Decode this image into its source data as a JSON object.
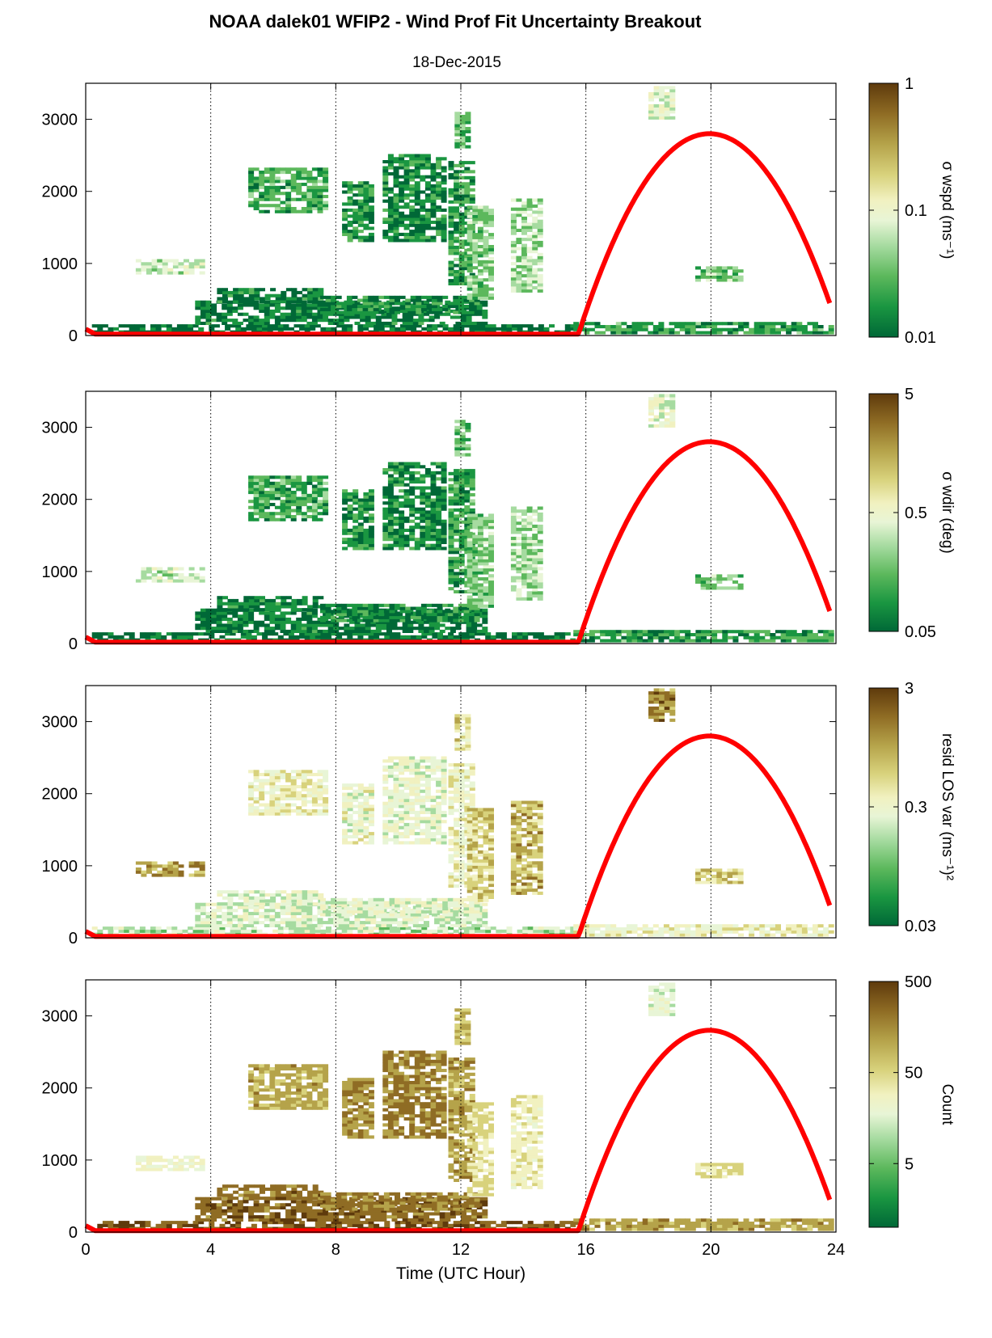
{
  "figure": {
    "title": "NOAA dalek01 WFIP2 - Wind Prof Fit Uncertainty Breakout",
    "subtitle": "18-Dec-2015",
    "xlabel": "Time (UTC Hour)"
  },
  "colors": {
    "sun_curve": "#ff0000",
    "frame": "#000000",
    "cmap": [
      "#006837",
      "#1a9641",
      "#5cb85c",
      "#a6dba0",
      "#e8f5d6",
      "#f1f1c0",
      "#d8d27c",
      "#b5a34a",
      "#8f6c24",
      "#5e3a0c"
    ]
  },
  "chart_data": [
    {
      "type": "heatmap",
      "panel": "wspd",
      "colorbar_label": "σ wspd (ms⁻¹)",
      "cbar_ticks": [
        "1",
        "0.1",
        "0.01"
      ],
      "cbar_scale": "log",
      "cbar_range": [
        0.01,
        1
      ],
      "xlim": [
        0,
        24
      ],
      "ylim": [
        0,
        3500
      ],
      "x_ticks": [
        "0",
        "4",
        "8",
        "12",
        "16",
        "20",
        "24"
      ],
      "y_ticks": [
        "0",
        "1000",
        "2000",
        "3000"
      ],
      "grid": "vertical dotted at 4,8,12,16,20",
      "sun_curve": {
        "rise_hour": 15.6,
        "peak_hour": 19.95,
        "peak_height": 2800,
        "end_hour": 23.8,
        "end_height": 450
      }
    },
    {
      "type": "heatmap",
      "panel": "wdir",
      "colorbar_label": "σ wdir (deg)",
      "cbar_ticks": [
        "5",
        "0.5",
        "0.05"
      ],
      "cbar_scale": "log",
      "cbar_range": [
        0.05,
        5
      ],
      "xlim": [
        0,
        24
      ],
      "ylim": [
        0,
        3500
      ],
      "x_ticks": [
        "0",
        "4",
        "8",
        "12",
        "16",
        "20",
        "24"
      ],
      "y_ticks": [
        "0",
        "1000",
        "2000",
        "3000"
      ],
      "grid": "vertical dotted at 4,8,12,16,20",
      "sun_curve": {
        "rise_hour": 15.6,
        "peak_hour": 19.95,
        "peak_height": 2800,
        "end_hour": 23.8,
        "end_height": 450
      }
    },
    {
      "type": "heatmap",
      "panel": "resid",
      "colorbar_label": "resid LOS var (ms⁻¹)²",
      "cbar_ticks": [
        "3",
        "0.3",
        "0.03"
      ],
      "cbar_scale": "log",
      "cbar_range": [
        0.03,
        3
      ],
      "xlim": [
        0,
        24
      ],
      "ylim": [
        0,
        3500
      ],
      "x_ticks": [
        "0",
        "4",
        "8",
        "12",
        "16",
        "20",
        "24"
      ],
      "y_ticks": [
        "0",
        "1000",
        "2000",
        "3000"
      ],
      "grid": "vertical dotted at 4,8,12,16,20",
      "sun_curve": {
        "rise_hour": 15.6,
        "peak_hour": 19.95,
        "peak_height": 2800,
        "end_hour": 23.8,
        "end_height": 450
      }
    },
    {
      "type": "heatmap",
      "panel": "count",
      "colorbar_label": "Count",
      "cbar_ticks": [
        "500",
        "50",
        "5"
      ],
      "cbar_scale": "log",
      "cbar_range": [
        1,
        500
      ],
      "xlim": [
        0,
        24
      ],
      "ylim": [
        0,
        3500
      ],
      "x_ticks": [
        "0",
        "4",
        "8",
        "12",
        "16",
        "20",
        "24"
      ],
      "y_ticks": [
        "0",
        "1000",
        "2000",
        "3000"
      ],
      "grid": "vertical dotted at 4,8,12,16,20",
      "sun_curve": {
        "rise_hour": 15.6,
        "peak_hour": 19.95,
        "peak_height": 2800,
        "end_hour": 23.8,
        "end_height": 450
      }
    }
  ]
}
